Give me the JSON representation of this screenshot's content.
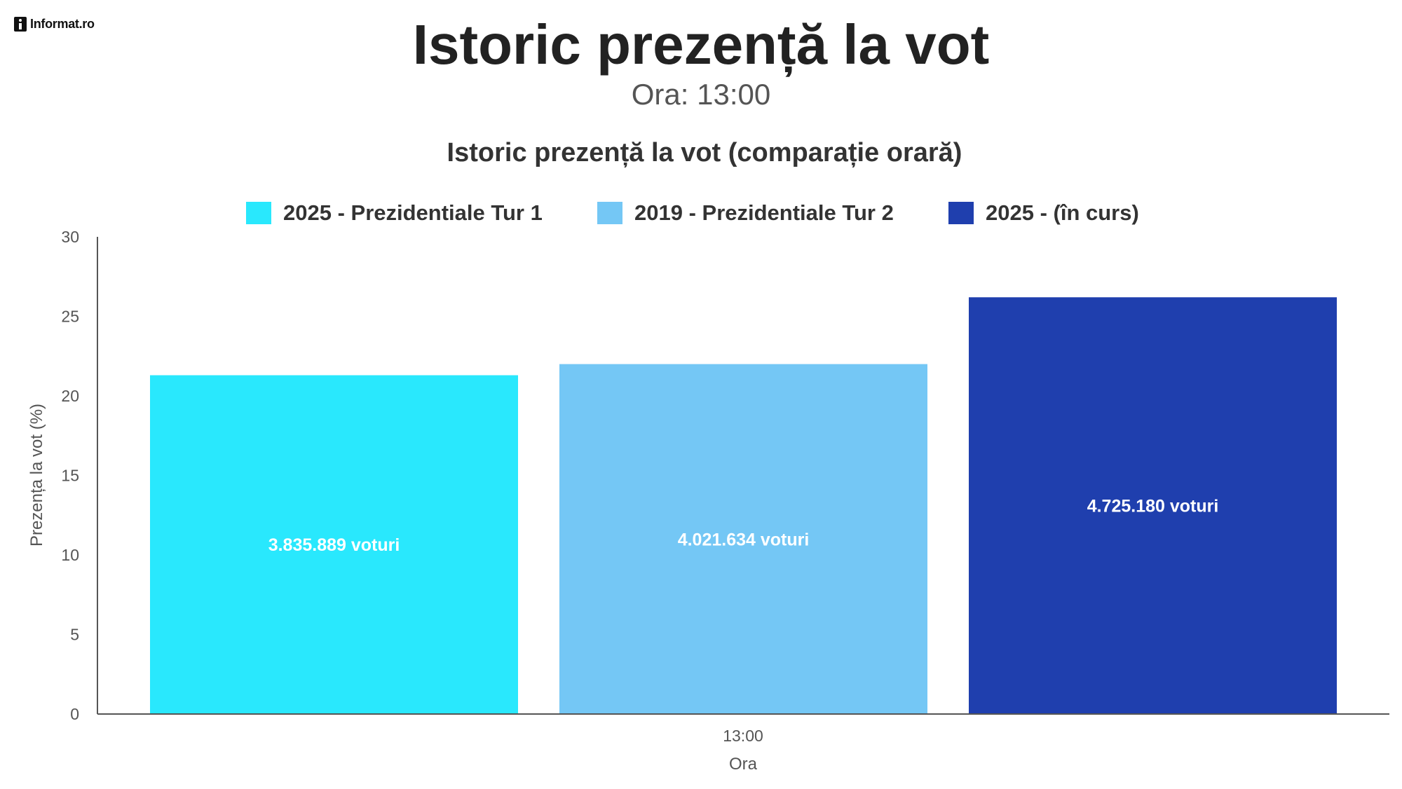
{
  "brand": {
    "logo_text": "Informat.ro"
  },
  "header": {
    "title": "Istoric prezență la vot",
    "subtitle": "Ora: 13:00"
  },
  "chart_data": {
    "type": "bar",
    "title": "Istoric prezență la vot (comparație orară)",
    "categories": [
      "13:00"
    ],
    "xlabel": "Ora",
    "ylabel": "Prezența la vot (%)",
    "ylim": [
      0,
      30
    ],
    "yticks": [
      0,
      5,
      10,
      15,
      20,
      25,
      30
    ],
    "grid": false,
    "legend_position": "top",
    "series": [
      {
        "name": "2025 - Prezidentiale Tur 1",
        "values": [
          21.3
        ],
        "label": "3.835.889 voturi",
        "color": "#29e8fd"
      },
      {
        "name": "2019 - Prezidentiale Tur 2",
        "values": [
          22.0
        ],
        "label": "4.021.634 voturi",
        "color": "#74c7f5"
      },
      {
        "name": "2025 -  (în curs)",
        "values": [
          26.2
        ],
        "label": "4.725.180 voturi",
        "color": "#1f3fae"
      }
    ]
  }
}
